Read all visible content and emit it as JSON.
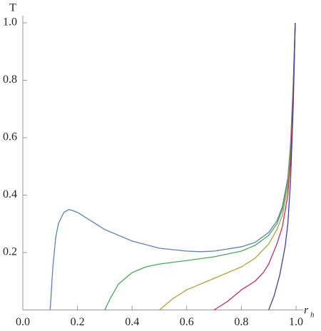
{
  "chart_data": {
    "type": "line",
    "x_label": "r",
    "x_label_sub": "h",
    "y_label": "T",
    "xlim": [
      0,
      1
    ],
    "ylim": [
      0,
      1
    ],
    "xticks": [
      {
        "value": 0,
        "label": "0.0"
      },
      0.2,
      0.4,
      0.6,
      0.8,
      {
        "value": 1,
        "label": "1.0"
      }
    ],
    "yticks": [
      0.2,
      0.4,
      0.6,
      0.8,
      {
        "value": 1,
        "label": "1.0"
      }
    ],
    "series": [
      {
        "color": "#5e81b5",
        "x": [
          0.1,
          0.11,
          0.12,
          0.13,
          0.15,
          0.17,
          0.2,
          0.25,
          0.3,
          0.4,
          0.5,
          0.6,
          0.65,
          0.7,
          0.8,
          0.85,
          0.9,
          0.93,
          0.95,
          0.97,
          0.98,
          0.99,
          0.997
        ],
        "values": [
          0,
          0.15,
          0.25,
          0.3,
          0.34,
          0.35,
          0.34,
          0.31,
          0.28,
          0.24,
          0.215,
          0.205,
          0.203,
          0.205,
          0.22,
          0.235,
          0.27,
          0.31,
          0.36,
          0.46,
          0.58,
          0.8,
          1.0
        ]
      },
      {
        "color": "#4aa65a",
        "x": [
          0.3,
          0.32,
          0.35,
          0.4,
          0.45,
          0.5,
          0.6,
          0.7,
          0.8,
          0.85,
          0.9,
          0.93,
          0.95,
          0.97,
          0.98,
          0.99,
          0.997
        ],
        "values": [
          0,
          0.04,
          0.09,
          0.13,
          0.15,
          0.16,
          0.172,
          0.185,
          0.205,
          0.225,
          0.26,
          0.3,
          0.35,
          0.45,
          0.57,
          0.78,
          1.0
        ]
      },
      {
        "color": "#b0a040",
        "x": [
          0.5,
          0.55,
          0.6,
          0.7,
          0.8,
          0.85,
          0.9,
          0.93,
          0.95,
          0.97,
          0.98,
          0.99,
          0.997
        ],
        "values": [
          0,
          0.04,
          0.07,
          0.11,
          0.15,
          0.18,
          0.23,
          0.28,
          0.33,
          0.43,
          0.55,
          0.77,
          1.0
        ]
      },
      {
        "color": "#c0305a",
        "x": [
          0.7,
          0.75,
          0.8,
          0.85,
          0.88,
          0.9,
          0.93,
          0.95,
          0.97,
          0.98,
          0.99,
          0.997
        ],
        "values": [
          0,
          0.03,
          0.07,
          0.1,
          0.13,
          0.16,
          0.23,
          0.29,
          0.4,
          0.52,
          0.75,
          1.0
        ]
      },
      {
        "color": "#4a3aa0",
        "x": [
          0.9,
          0.92,
          0.94,
          0.96,
          0.97,
          0.98,
          0.99,
          0.997
        ],
        "values": [
          0,
          0.05,
          0.12,
          0.22,
          0.3,
          0.45,
          0.72,
          1.0
        ]
      }
    ]
  }
}
